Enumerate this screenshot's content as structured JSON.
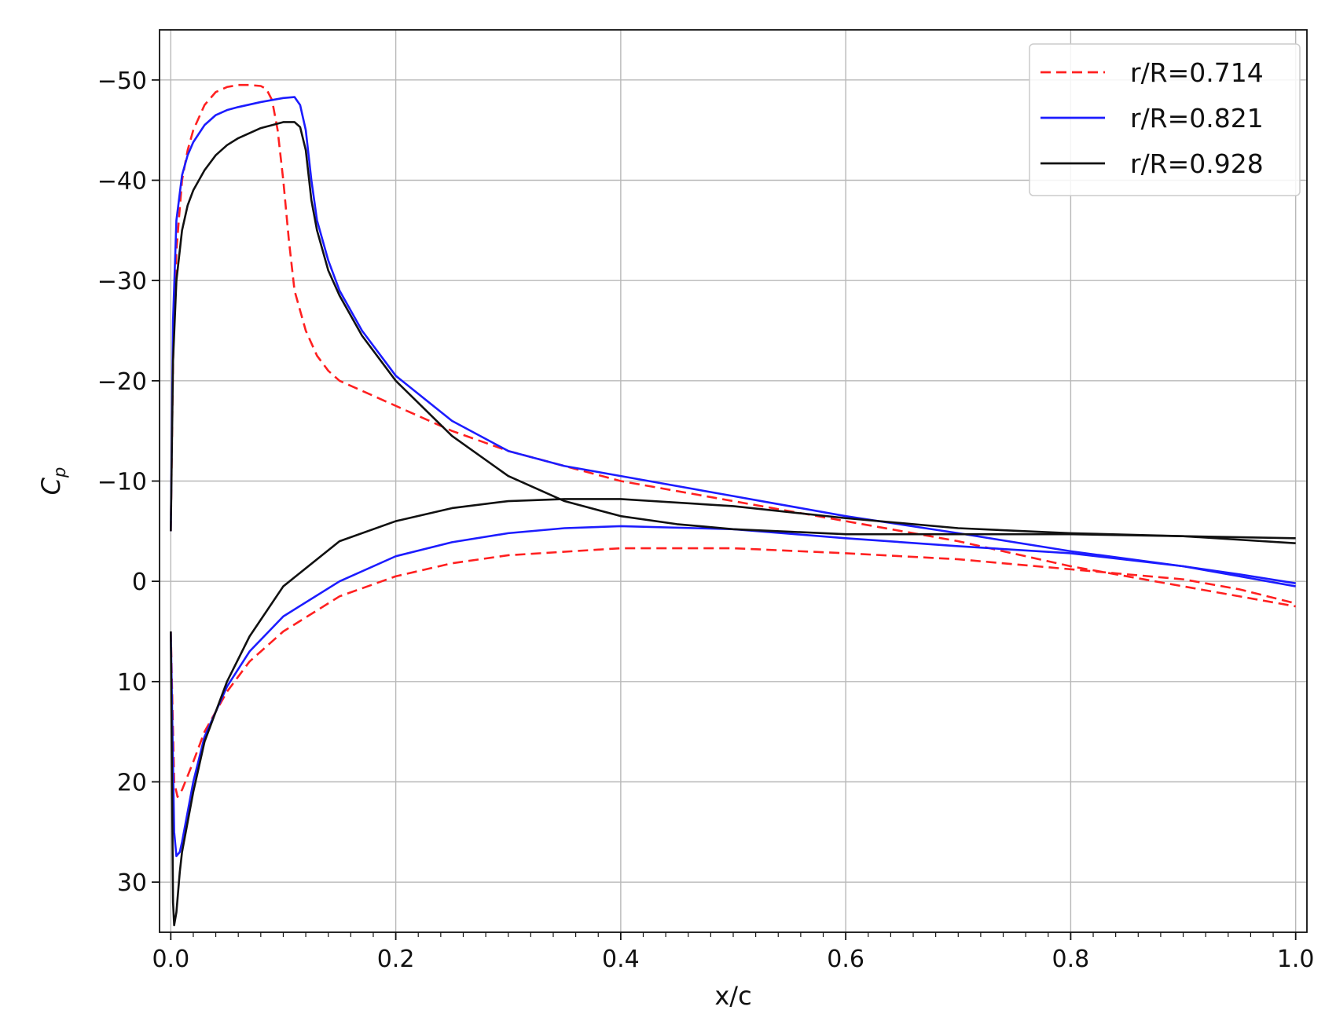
{
  "chart_data": {
    "type": "line",
    "title": "",
    "xlabel": "x/c",
    "ylabel": "C",
    "ylabel_subscript": "p",
    "xlim": [
      -0.01,
      1.01
    ],
    "ylim": [
      35,
      -55
    ],
    "y_inverted": true,
    "grid": true,
    "legend_placement": "top-right",
    "x_ticks": [
      0.0,
      0.2,
      0.4,
      0.6,
      0.8,
      1.0
    ],
    "x_tick_labels": [
      "0.0",
      "0.2",
      "0.4",
      "0.6",
      "0.8",
      "1.0"
    ],
    "y_ticks": [
      -50,
      -40,
      -30,
      -20,
      -10,
      0,
      10,
      20,
      30
    ],
    "y_tick_labels": [
      "−50",
      "−40",
      "−30",
      "−20",
      "−10",
      "0",
      "10",
      "20",
      "30"
    ],
    "series": [
      {
        "name": "r/R=0.714",
        "color": "#ff2020",
        "dash": "dashed",
        "upper": {
          "x": [
            0.0,
            0.002,
            0.005,
            0.01,
            0.015,
            0.02,
            0.03,
            0.04,
            0.05,
            0.06,
            0.07,
            0.08,
            0.085,
            0.09,
            0.095,
            0.1,
            0.105,
            0.11,
            0.12,
            0.13,
            0.14,
            0.15,
            0.17,
            0.2,
            0.25,
            0.3,
            0.35,
            0.4,
            0.5,
            0.6,
            0.7,
            0.8,
            0.9,
            1.0
          ],
          "y": [
            -5,
            -22,
            -33,
            -40,
            -43,
            -45,
            -47.5,
            -48.8,
            -49.3,
            -49.5,
            -49.5,
            -49.4,
            -49.1,
            -48,
            -45,
            -40,
            -34,
            -29,
            -25,
            -22.5,
            -21,
            -20,
            -19,
            -17.5,
            -15,
            -13,
            -11.5,
            -10,
            -8,
            -6,
            -4,
            -1.5,
            0.5,
            2.5
          ]
        },
        "lower": {
          "x": [
            0.0,
            0.003,
            0.006,
            0.01,
            0.02,
            0.03,
            0.05,
            0.07,
            0.1,
            0.15,
            0.2,
            0.25,
            0.3,
            0.4,
            0.5,
            0.6,
            0.7,
            0.8,
            0.9,
            0.95,
            1.0
          ],
          "y": [
            5,
            20,
            21.5,
            20.8,
            18,
            15,
            11,
            8,
            5,
            1.5,
            -0.5,
            -1.8,
            -2.6,
            -3.3,
            -3.3,
            -2.8,
            -2.2,
            -1.2,
            -0.2,
            0.8,
            2.2
          ]
        }
      },
      {
        "name": "r/R=0.821",
        "color": "#1c1cff",
        "dash": "solid",
        "upper": {
          "x": [
            0.0,
            0.002,
            0.005,
            0.01,
            0.015,
            0.02,
            0.03,
            0.04,
            0.05,
            0.06,
            0.08,
            0.1,
            0.11,
            0.115,
            0.12,
            0.125,
            0.13,
            0.14,
            0.15,
            0.17,
            0.2,
            0.25,
            0.3,
            0.35,
            0.4,
            0.5,
            0.6,
            0.7,
            0.8,
            0.9,
            0.95,
            1.0
          ],
          "y": [
            -5,
            -26,
            -36,
            -40.5,
            -42.5,
            -43.8,
            -45.5,
            -46.5,
            -47,
            -47.3,
            -47.8,
            -48.2,
            -48.3,
            -47.5,
            -45,
            -40,
            -36,
            -32,
            -29,
            -25,
            -20.5,
            -16,
            -13,
            -11.5,
            -10.5,
            -8.5,
            -6.5,
            -4.8,
            -3,
            -1.5,
            -0.7,
            0.2
          ]
        },
        "lower": {
          "x": [
            0.0,
            0.003,
            0.005,
            0.008,
            0.01,
            0.02,
            0.03,
            0.05,
            0.07,
            0.1,
            0.15,
            0.2,
            0.25,
            0.3,
            0.35,
            0.4,
            0.5,
            0.6,
            0.7,
            0.8,
            0.9,
            0.95,
            1.0
          ],
          "y": [
            5,
            25,
            27.4,
            27,
            26,
            20,
            15.5,
            10.5,
            7,
            3.5,
            0,
            -2.5,
            -3.9,
            -4.8,
            -5.3,
            -5.5,
            -5.2,
            -4.3,
            -3.5,
            -2.8,
            -1.5,
            -0.5,
            0.5
          ]
        }
      },
      {
        "name": "r/R=0.928",
        "color": "#111111",
        "dash": "solid",
        "upper": {
          "x": [
            0.0,
            0.002,
            0.005,
            0.01,
            0.015,
            0.02,
            0.03,
            0.04,
            0.05,
            0.06,
            0.08,
            0.1,
            0.11,
            0.115,
            0.12,
            0.125,
            0.13,
            0.14,
            0.15,
            0.17,
            0.2,
            0.25,
            0.3,
            0.35,
            0.4,
            0.45,
            0.5,
            0.6,
            0.7,
            0.8,
            0.9,
            1.0
          ],
          "y": [
            -5,
            -22,
            -30,
            -35,
            -37.5,
            -39,
            -41,
            -42.5,
            -43.5,
            -44.2,
            -45.2,
            -45.8,
            -45.8,
            -45.3,
            -43,
            -38,
            -35,
            -31,
            -28.5,
            -24.5,
            -20,
            -14.5,
            -10.5,
            -8,
            -6.5,
            -5.7,
            -5.2,
            -4.7,
            -4.7,
            -4.7,
            -4.5,
            -4.3
          ]
        },
        "lower": {
          "x": [
            0.0,
            0.002,
            0.003,
            0.005,
            0.008,
            0.01,
            0.02,
            0.03,
            0.05,
            0.07,
            0.1,
            0.15,
            0.2,
            0.25,
            0.3,
            0.35,
            0.4,
            0.5,
            0.6,
            0.7,
            0.8,
            0.9,
            1.0
          ],
          "y": [
            5,
            32,
            34.3,
            33,
            29,
            27,
            21,
            16,
            10,
            5.5,
            0.5,
            -4,
            -6,
            -7.3,
            -8,
            -8.2,
            -8.2,
            -7.5,
            -6.3,
            -5.3,
            -4.8,
            -4.5,
            -3.8
          ]
        }
      }
    ]
  }
}
